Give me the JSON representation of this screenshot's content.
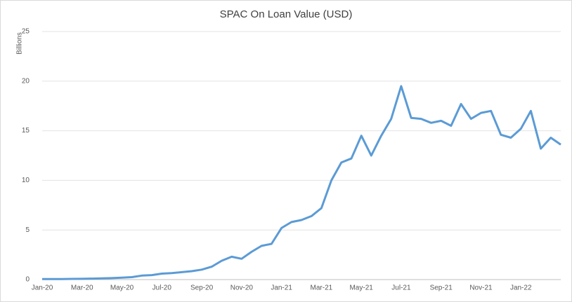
{
  "chart_data": {
    "type": "line",
    "title": "SPAC On Loan Value (USD)",
    "y_label": "Billions",
    "categories": [
      "Jan-20",
      null,
      null,
      null,
      "Mar-20",
      null,
      null,
      null,
      "May-20",
      null,
      null,
      null,
      "Jul-20",
      null,
      null,
      null,
      "Sep-20",
      null,
      null,
      null,
      "Nov-20",
      null,
      null,
      null,
      "Jan-21",
      null,
      null,
      null,
      "Mar-21",
      null,
      null,
      null,
      "May-21",
      null,
      null,
      null,
      "Jul-21",
      null,
      null,
      null,
      "Sep-21",
      null,
      null,
      null,
      "Nov-21",
      null,
      null,
      null,
      "Jan-22",
      null,
      null,
      null,
      null
    ],
    "values": [
      0.05,
      0.05,
      0.06,
      0.07,
      0.08,
      0.1,
      0.12,
      0.15,
      0.2,
      0.25,
      0.4,
      0.45,
      0.6,
      0.65,
      0.75,
      0.85,
      1.0,
      1.3,
      1.9,
      2.3,
      2.1,
      2.8,
      3.4,
      3.6,
      5.2,
      5.8,
      6.0,
      6.4,
      7.2,
      10.0,
      11.8,
      12.2,
      14.5,
      12.5,
      14.5,
      16.2,
      19.5,
      16.3,
      16.2,
      15.8,
      16.0,
      15.5,
      17.7,
      16.2,
      16.8,
      17.0,
      14.6,
      14.3,
      15.2,
      17.0,
      13.2,
      14.3,
      13.6
    ],
    "color": "#5b9bd5",
    "ylim": [
      0,
      25
    ],
    "yticks": [
      0,
      5,
      10,
      15,
      20,
      25
    ],
    "grid": true
  }
}
